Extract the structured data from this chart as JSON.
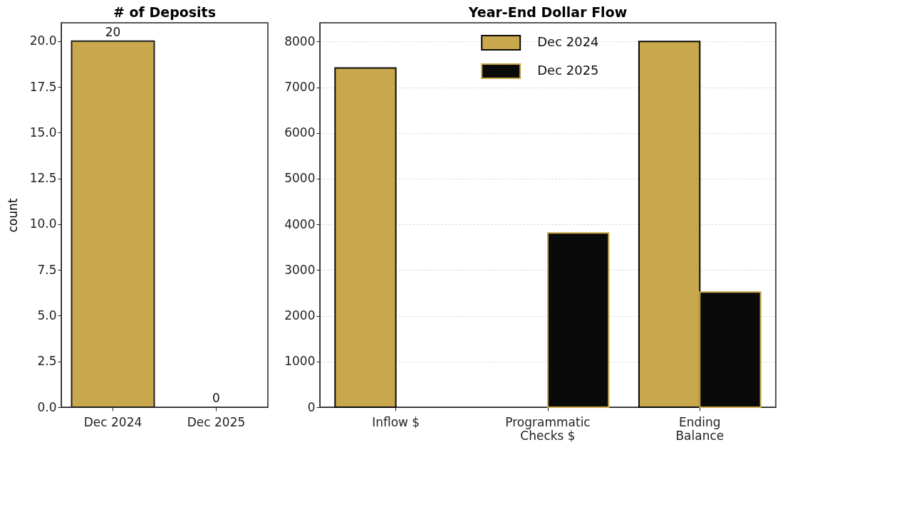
{
  "chart_data": [
    {
      "type": "bar",
      "title": "# of Deposits",
      "ylabel": "count",
      "categories": [
        "Dec 2024",
        "Dec 2025"
      ],
      "values": [
        20,
        0
      ],
      "color": "#c9a74c",
      "ylim": [
        0,
        21
      ],
      "yticks": [
        {
          "value": 0,
          "label": "0.0"
        },
        {
          "value": 2.5,
          "label": "2.5"
        },
        {
          "value": 5,
          "label": "5.0"
        },
        {
          "value": 7.5,
          "label": "7.5"
        },
        {
          "value": 10,
          "label": "10.0"
        },
        {
          "value": 12.5,
          "label": "12.5"
        },
        {
          "value": 15,
          "label": "15.0"
        },
        {
          "value": 17.5,
          "label": "17.5"
        },
        {
          "value": 20,
          "label": "20.0"
        }
      ],
      "data_labels": true,
      "grid": false
    },
    {
      "type": "bar",
      "title": "Year-End Dollar Flow",
      "categories": [
        "Inflow $",
        "Programmatic\nChecks $",
        "Ending\nBalance"
      ],
      "series": [
        {
          "name": "Dec 2024",
          "color": "#c9a74c",
          "values": [
            7420,
            0,
            8000
          ]
        },
        {
          "name": "Dec 2025",
          "color": "#0a0a0a",
          "values": [
            0,
            3810,
            2520
          ]
        }
      ],
      "ylim": [
        0,
        8410
      ],
      "yticks": [
        0,
        1000,
        2000,
        3000,
        4000,
        5000,
        6000,
        7000,
        8000
      ],
      "grid": "y",
      "legend": "top"
    }
  ]
}
